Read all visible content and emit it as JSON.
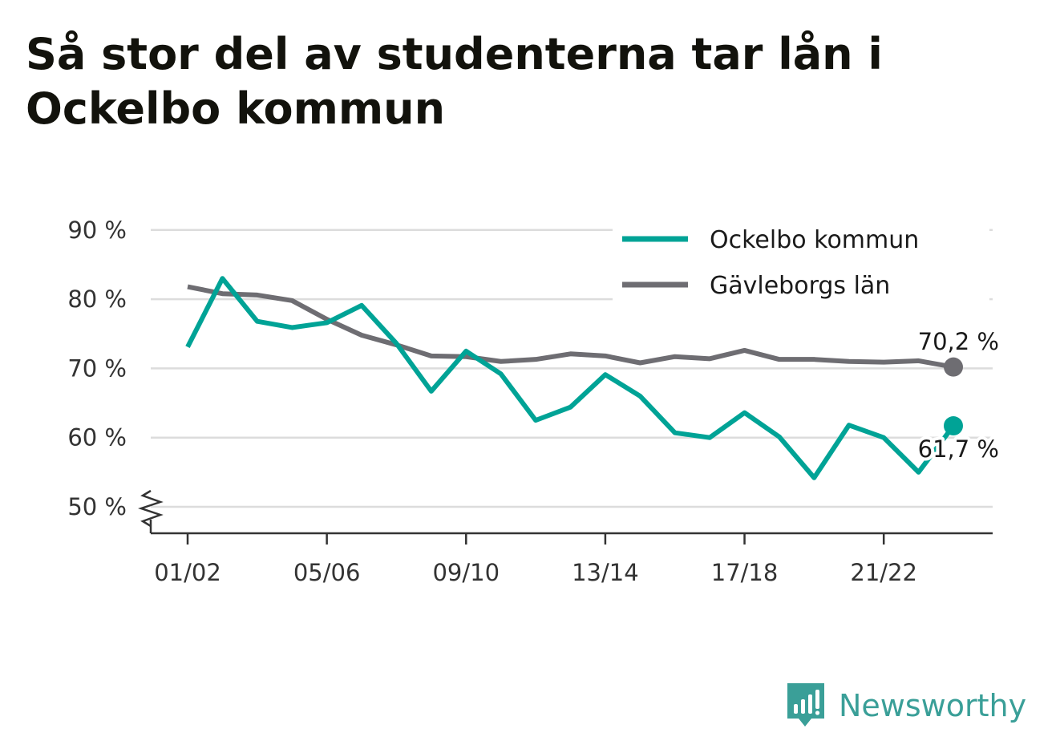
{
  "title": "Så stor del av studenterna tar lån i Ockelbo kommun",
  "brand": {
    "name": "Newsworthy",
    "icon": "newsworthy-logo-icon"
  },
  "chart_data": {
    "type": "line",
    "title": "Så stor del av studenterna tar lån i Ockelbo kommun",
    "x": [
      "01/02",
      "02/03",
      "03/04",
      "04/05",
      "05/06",
      "06/07",
      "07/08",
      "08/09",
      "09/10",
      "10/11",
      "11/12",
      "12/13",
      "13/14",
      "14/15",
      "15/16",
      "16/17",
      "17/18",
      "18/19",
      "19/20",
      "20/21",
      "21/22",
      "22/23",
      "23/24"
    ],
    "x_tick_labels": [
      "01/02",
      "05/06",
      "09/10",
      "13/14",
      "17/18",
      "21/22"
    ],
    "y_ticks": [
      50,
      60,
      70,
      80,
      90
    ],
    "y_tick_labels": [
      "50 %",
      "60 %",
      "70 %",
      "80 %",
      "90 %"
    ],
    "ylim": [
      46,
      92
    ],
    "y_axis_break": true,
    "grid": true,
    "legend_position": "top-right",
    "series": [
      {
        "name": "Ockelbo kommun",
        "color": "#00a396",
        "values": [
          73.1,
          83.0,
          76.8,
          75.9,
          76.6,
          79.1,
          73.6,
          66.7,
          72.5,
          69.2,
          62.5,
          64.4,
          69.1,
          66.0,
          60.7,
          60.0,
          63.6,
          60.1,
          54.2,
          61.8,
          60.0,
          55.0,
          61.7
        ],
        "end_label": "61,7 %"
      },
      {
        "name": "Gävleborgs län",
        "color": "#6e6d72",
        "values": [
          81.8,
          80.8,
          80.6,
          79.8,
          77.1,
          74.8,
          73.4,
          71.8,
          71.7,
          71.0,
          71.3,
          72.1,
          71.8,
          70.8,
          71.7,
          71.4,
          72.6,
          71.3,
          71.3,
          71.0,
          70.9,
          71.1,
          70.2
        ],
        "end_label": "70,2 %"
      }
    ]
  }
}
